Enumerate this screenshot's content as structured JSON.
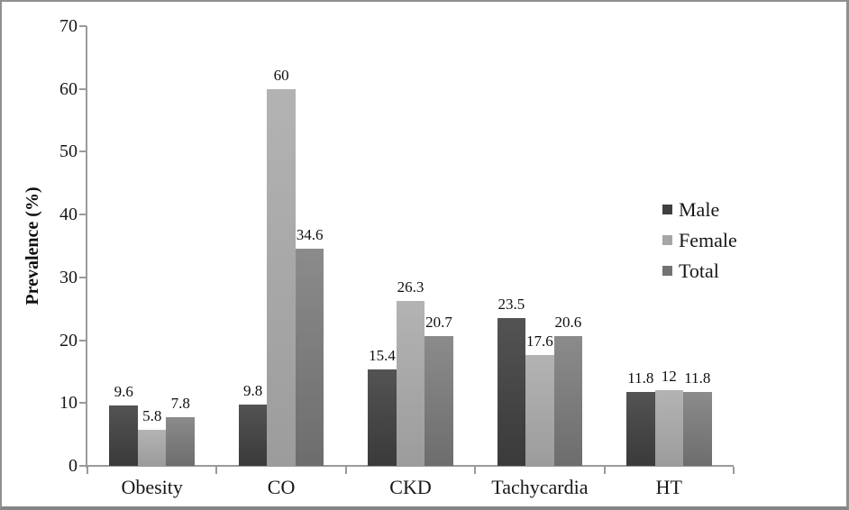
{
  "chart_data": {
    "type": "bar",
    "title": "",
    "xlabel": "",
    "ylabel": "Prevalence (%)",
    "ylim": [
      0,
      70
    ],
    "ytick_step": 10,
    "yticks": [
      0,
      10,
      20,
      30,
      40,
      50,
      60,
      70
    ],
    "grid": false,
    "legend_position": "right",
    "data_labels": true,
    "categories": [
      "Obesity",
      "CO",
      "CKD",
      "Tachycardia",
      "HT"
    ],
    "series": [
      {
        "name": "Male",
        "values": [
          9.6,
          9.8,
          15.4,
          23.5,
          11.8
        ],
        "labels": [
          "9.6",
          "9.8",
          "15.4",
          "23.5",
          "11.8"
        ],
        "swatch_color": "#404040",
        "color_top": "#535353",
        "color_bottom": "#3a3a3a"
      },
      {
        "name": "Female",
        "values": [
          5.8,
          60,
          26.3,
          17.6,
          12
        ],
        "labels": [
          "5.8",
          "60",
          "26.3",
          "17.6",
          "12"
        ],
        "swatch_color": "#a6a6a6",
        "color_top": "#b3b3b3",
        "color_bottom": "#9c9c9c"
      },
      {
        "name": "Total",
        "values": [
          7.8,
          34.6,
          20.7,
          20.6,
          11.8
        ],
        "labels": [
          "7.8",
          "34.6",
          "20.7",
          "20.6",
          "11.8"
        ],
        "swatch_color": "#737373",
        "color_top": "#8b8b8b",
        "color_bottom": "#6d6d6d"
      }
    ],
    "colors": {
      "axis_line": "#9a9a9a",
      "text": "#171717",
      "frame_border": "#8f8f8f",
      "background": "#ffffff"
    }
  }
}
